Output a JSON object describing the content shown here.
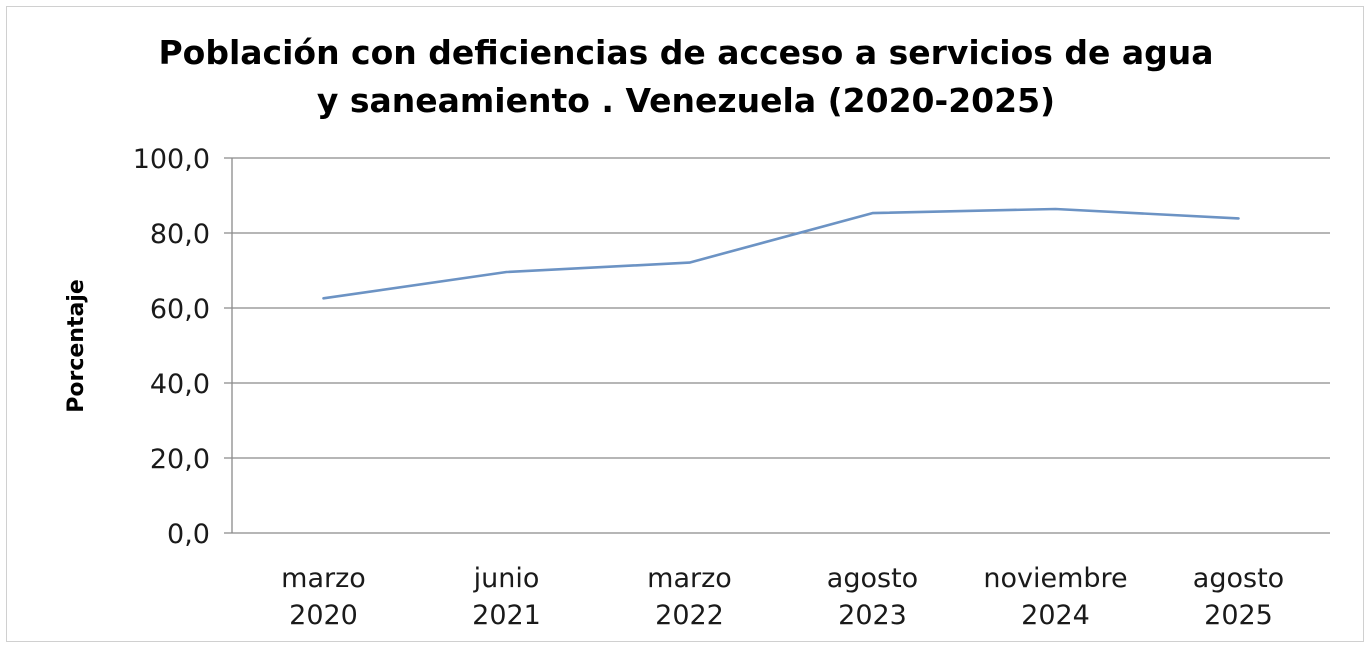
{
  "chart_data": {
    "type": "line",
    "title": [
      "Población con deficiencias de acceso a servicios de agua",
      "y saneamiento . Venezuela (2020-2025)"
    ],
    "ylabel": "Porcentaje",
    "xlabel": "",
    "ylim": [
      0,
      100
    ],
    "yticks": [
      "0,0",
      "20,0",
      "40,0",
      "60,0",
      "80,0",
      "100,0"
    ],
    "ytick_values": [
      0,
      20,
      40,
      60,
      80,
      100
    ],
    "grid": true,
    "legend": "none",
    "categories": [
      [
        "marzo",
        "2020"
      ],
      [
        "junio",
        "2021"
      ],
      [
        "marzo",
        "2022"
      ],
      [
        "agosto",
        "2023"
      ],
      [
        "noviembre",
        "2024"
      ],
      [
        "agosto",
        "2025"
      ]
    ],
    "series": [
      {
        "values": [
          62.6,
          69.6,
          72.1,
          85.3,
          86.4,
          83.9
        ],
        "color": "#6c93c4"
      }
    ]
  }
}
